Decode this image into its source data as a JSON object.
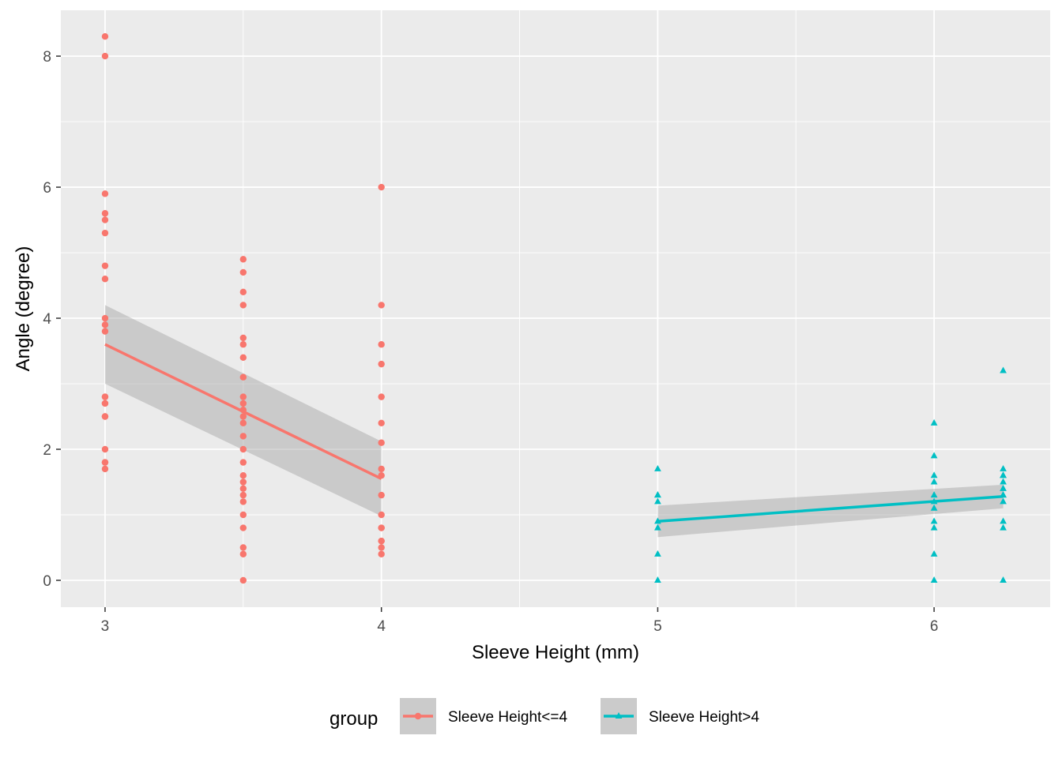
{
  "chart_data": {
    "type": "scatter",
    "title": "",
    "xlabel": "Sleeve Height (mm)",
    "ylabel": "Angle (degree)",
    "xlim": [
      2.84,
      6.42
    ],
    "ylim": [
      -0.41,
      8.7
    ],
    "xticks": [
      "3",
      "4",
      "5",
      "6"
    ],
    "yticks": [
      "0",
      "2",
      "4",
      "6",
      "8"
    ],
    "grid": true,
    "panel_background": "#ebebeb",
    "legend": {
      "title": "group",
      "position": "bottom"
    },
    "ribbon_color": "#999999",
    "series": [
      {
        "name": "Sleeve Height<=4",
        "color": "#f8766d",
        "marker": "circle",
        "x": [
          3,
          3,
          3,
          3,
          3,
          3,
          3,
          3,
          3,
          3,
          3,
          3,
          3,
          3,
          3,
          3,
          3,
          3,
          3,
          3,
          3,
          3.5,
          3.5,
          3.5,
          3.5,
          3.5,
          3.5,
          3.5,
          3.5,
          3.5,
          3.5,
          3.5,
          3.5,
          3.5,
          3.5,
          3.5,
          3.5,
          3.5,
          3.5,
          3.5,
          3.5,
          3.5,
          3.5,
          3.5,
          3.5,
          3.5,
          3.5,
          4,
          4,
          4,
          4,
          4,
          4,
          4,
          4,
          4,
          4,
          4,
          4,
          4,
          4,
          4,
          4,
          4
        ],
        "y": [
          8.3,
          8.0,
          5.9,
          5.6,
          5.5,
          5.3,
          4.8,
          4.6,
          4.0,
          3.9,
          3.8,
          2.8,
          2.7,
          2.5,
          2.0,
          1.8,
          1.7,
          2.8,
          2.7,
          2.5,
          1.8,
          4.9,
          4.7,
          4.4,
          4.2,
          3.7,
          3.6,
          3.4,
          3.1,
          2.8,
          2.7,
          2.5,
          2.4,
          2.2,
          2.0,
          1.8,
          1.6,
          1.5,
          1.4,
          1.3,
          1.2,
          1.0,
          0.8,
          0.5,
          0.4,
          0.0,
          2.6,
          6.0,
          4.2,
          3.6,
          3.3,
          2.8,
          2.4,
          2.1,
          1.7,
          1.6,
          1.3,
          1.0,
          0.8,
          0.6,
          0.5,
          0.4,
          0.6,
          0.8
        ],
        "fit": {
          "x": [
            3,
            4
          ],
          "y": [
            3.6,
            1.55
          ],
          "ci_low": [
            3.0,
            0.98
          ],
          "ci_high": [
            4.2,
            2.12
          ]
        }
      },
      {
        "name": "Sleeve Height>4",
        "color": "#00bfc4",
        "marker": "triangle",
        "x": [
          5,
          5,
          5,
          5,
          5,
          5,
          5,
          5,
          6,
          6,
          6,
          6,
          6,
          6,
          6,
          6,
          6,
          6,
          6,
          6.25,
          6.25,
          6.25,
          6.25,
          6.25,
          6.25,
          6.25,
          6.25,
          6.25,
          6.25,
          6.25,
          6.25
        ],
        "y": [
          1.7,
          1.3,
          1.2,
          0.9,
          0.8,
          0.4,
          0.0,
          1.3,
          2.4,
          1.9,
          1.6,
          1.5,
          1.3,
          1.2,
          1.1,
          0.9,
          0.8,
          0.4,
          0.0,
          3.2,
          1.7,
          1.6,
          1.5,
          1.4,
          1.3,
          1.2,
          0.9,
          0.8,
          0.0,
          1.3,
          1.6
        ],
        "fit": {
          "x": [
            5,
            6.25
          ],
          "y": [
            0.9,
            1.28
          ],
          "ci_low": [
            0.66,
            1.1
          ],
          "ci_high": [
            1.14,
            1.46
          ]
        }
      }
    ]
  }
}
